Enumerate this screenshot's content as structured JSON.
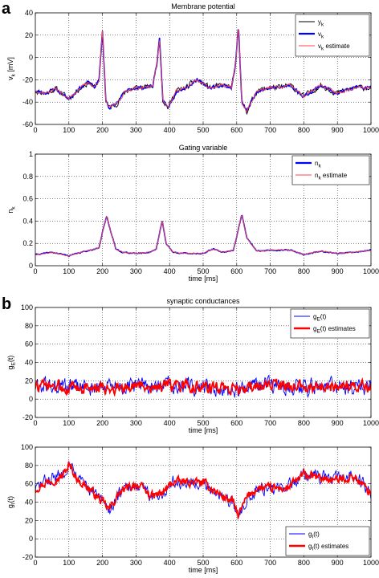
{
  "panel_labels": [
    "a",
    "b"
  ],
  "chart_data": [
    {
      "type": "line",
      "title": "Membrane potential",
      "xlabel": "",
      "ylabel": "v_k [mV]",
      "xlim": [
        0,
        1000
      ],
      "ylim": [
        -60,
        40
      ],
      "xticks": [
        0,
        100,
        200,
        300,
        400,
        500,
        600,
        700,
        800,
        900,
        1000
      ],
      "yticks": [
        -60,
        -40,
        -20,
        0,
        20,
        40
      ],
      "grid": true,
      "legend_position": "top-right",
      "series": [
        {
          "name": "y_k",
          "color": "#000000",
          "noise": 2.2,
          "seed": 11,
          "x": [
            0,
            30,
            60,
            100,
            130,
            160,
            175,
            190,
            200,
            210,
            220,
            240,
            270,
            300,
            330,
            350,
            362,
            370,
            380,
            395,
            420,
            450,
            480,
            520,
            560,
            585,
            597,
            605,
            615,
            630,
            660,
            700,
            730,
            760,
            800,
            850,
            900,
            950,
            1000
          ],
          "values": [
            -30,
            -32,
            -28,
            -37,
            -28,
            -22,
            -27,
            -20,
            24,
            -38,
            -45,
            -42,
            -30,
            -27,
            -27,
            -25,
            -5,
            16,
            -38,
            -45,
            -30,
            -27,
            -20,
            -27,
            -25,
            -27,
            -5,
            30,
            -40,
            -48,
            -30,
            -27,
            -27,
            -25,
            -35,
            -25,
            -32,
            -27,
            -27
          ]
        },
        {
          "name": "v_k",
          "color": "#0000ff",
          "noise": 1.2,
          "seed": 23,
          "x": [
            0,
            30,
            60,
            100,
            130,
            160,
            175,
            190,
            200,
            210,
            220,
            240,
            270,
            300,
            330,
            350,
            362,
            370,
            380,
            395,
            420,
            450,
            480,
            520,
            560,
            585,
            597,
            605,
            615,
            630,
            660,
            700,
            730,
            760,
            800,
            850,
            900,
            950,
            1000
          ],
          "values": [
            -30,
            -32,
            -28,
            -37,
            -28,
            -22,
            -27,
            -20,
            24,
            -38,
            -45,
            -42,
            -30,
            -27,
            -27,
            -25,
            -5,
            16,
            -38,
            -45,
            -30,
            -27,
            -20,
            -27,
            -25,
            -27,
            -5,
            30,
            -40,
            -48,
            -30,
            -27,
            -27,
            -25,
            -35,
            -25,
            -32,
            -27,
            -27
          ]
        },
        {
          "name": "v_k estimate",
          "color": "#ff4444",
          "noise": 1.2,
          "seed": 37,
          "x": [
            0,
            30,
            60,
            100,
            130,
            160,
            175,
            190,
            200,
            210,
            220,
            240,
            270,
            300,
            330,
            350,
            362,
            370,
            380,
            395,
            420,
            450,
            480,
            520,
            560,
            585,
            597,
            605,
            615,
            630,
            660,
            700,
            730,
            760,
            800,
            850,
            900,
            950,
            1000
          ],
          "values": [
            -30,
            -32,
            -28,
            -37,
            -28,
            -22,
            -27,
            -20,
            24,
            -38,
            -45,
            -42,
            -30,
            -27,
            -27,
            -25,
            -5,
            16,
            -38,
            -45,
            -30,
            -27,
            -20,
            -27,
            -25,
            -27,
            -5,
            30,
            -40,
            -48,
            -30,
            -27,
            -27,
            -25,
            -35,
            -25,
            -32,
            -27,
            -27
          ]
        }
      ],
      "legend": [
        {
          "label": "y",
          "sub": "k"
        },
        {
          "label": "v",
          "sub": "k"
        },
        {
          "label": "v",
          "sub": "k",
          "suffix": " estimate"
        }
      ]
    },
    {
      "type": "line",
      "title": "Gating variable",
      "xlabel": "time [ms]",
      "ylabel": "n_k",
      "xlim": [
        0,
        1000
      ],
      "ylim": [
        0,
        1
      ],
      "xticks": [
        0,
        100,
        200,
        300,
        400,
        500,
        600,
        700,
        800,
        900,
        1000
      ],
      "yticks": [
        0,
        0.2,
        0.4,
        0.6,
        0.8,
        1
      ],
      "grid": true,
      "legend_position": "top-right",
      "series": [
        {
          "name": "n_k",
          "color": "#0000ff",
          "noise": 0.004,
          "seed": 41,
          "x": [
            0,
            50,
            100,
            150,
            190,
            200,
            213,
            225,
            240,
            260,
            300,
            340,
            360,
            378,
            390,
            410,
            450,
            500,
            530,
            560,
            590,
            603,
            615,
            630,
            660,
            700,
            760,
            800,
            850,
            900,
            950,
            1000
          ],
          "values": [
            0.1,
            0.12,
            0.09,
            0.13,
            0.16,
            0.3,
            0.45,
            0.3,
            0.15,
            0.12,
            0.11,
            0.12,
            0.15,
            0.4,
            0.2,
            0.12,
            0.11,
            0.11,
            0.15,
            0.12,
            0.14,
            0.3,
            0.46,
            0.25,
            0.13,
            0.14,
            0.14,
            0.1,
            0.13,
            0.11,
            0.12,
            0.14
          ]
        },
        {
          "name": "n_k estimate",
          "color": "#ff4444",
          "noise": 0.004,
          "seed": 53,
          "x": [
            0,
            50,
            100,
            150,
            190,
            200,
            213,
            225,
            240,
            260,
            300,
            340,
            360,
            378,
            390,
            410,
            450,
            500,
            530,
            560,
            590,
            603,
            615,
            630,
            660,
            700,
            760,
            800,
            850,
            900,
            950,
            1000
          ],
          "values": [
            0.1,
            0.12,
            0.09,
            0.13,
            0.16,
            0.3,
            0.45,
            0.3,
            0.15,
            0.12,
            0.11,
            0.12,
            0.15,
            0.4,
            0.2,
            0.12,
            0.11,
            0.11,
            0.15,
            0.12,
            0.14,
            0.3,
            0.46,
            0.25,
            0.13,
            0.14,
            0.14,
            0.1,
            0.13,
            0.11,
            0.12,
            0.14
          ]
        }
      ],
      "legend": [
        {
          "label": "n",
          "sub": "k"
        },
        {
          "label": "n",
          "sub": "k",
          "suffix": " estimate"
        }
      ]
    },
    {
      "type": "line",
      "title": "synaptic conductances",
      "xlabel": "time [ms]",
      "ylabel": "g_E(t)",
      "xlim": [
        0,
        1000
      ],
      "ylim": [
        -20,
        100
      ],
      "xticks": [
        0,
        100,
        200,
        300,
        400,
        500,
        600,
        700,
        800,
        900,
        1000
      ],
      "yticks": [
        -20,
        0,
        20,
        40,
        60,
        80,
        100
      ],
      "grid": true,
      "legend_position": "top-right",
      "series": [
        {
          "name": "g_E(t)",
          "color": "#0000ff",
          "noise": 8,
          "seed": 61,
          "x": [
            0,
            100,
            200,
            300,
            400,
            500,
            600,
            700,
            800,
            900,
            1000
          ],
          "values": [
            14,
            13,
            12,
            14,
            14,
            13,
            10,
            15,
            14,
            13,
            13
          ]
        },
        {
          "name": "g_E(t) estimates",
          "color": "#ff0000",
          "noise": 5.5,
          "seed": 73,
          "x": [
            0,
            100,
            200,
            300,
            400,
            500,
            600,
            700,
            800,
            900,
            1000
          ],
          "values": [
            14,
            13,
            12,
            14,
            14,
            13,
            11,
            15,
            14,
            13,
            13
          ]
        }
      ],
      "legend": [
        {
          "label": "g",
          "sub": "E",
          "suffix": "(t)"
        },
        {
          "label": "g",
          "sub": "E",
          "suffix": "(t) estimates"
        }
      ]
    },
    {
      "type": "line",
      "title": "",
      "xlabel": "time [ms]",
      "ylabel": "g_I(t)",
      "xlim": [
        0,
        1000
      ],
      "ylim": [
        -20,
        100
      ],
      "xticks": [
        0,
        100,
        200,
        300,
        400,
        500,
        600,
        700,
        800,
        900,
        1000
      ],
      "yticks": [
        -20,
        0,
        20,
        40,
        60,
        80,
        100
      ],
      "grid": true,
      "legend_position": "bottom-right",
      "series": [
        {
          "name": "g_I(t)",
          "color": "#0000ff",
          "noise": 6,
          "seed": 83,
          "x": [
            0,
            40,
            80,
            100,
            130,
            160,
            200,
            220,
            250,
            300,
            350,
            380,
            410,
            450,
            500,
            560,
            590,
            605,
            630,
            660,
            700,
            750,
            800,
            850,
            900,
            950,
            1000
          ],
          "values": [
            55,
            65,
            70,
            85,
            65,
            55,
            40,
            30,
            50,
            60,
            45,
            50,
            62,
            62,
            62,
            45,
            40,
            22,
            45,
            55,
            55,
            55,
            72,
            68,
            65,
            70,
            50
          ]
        },
        {
          "name": "g_I(t) estimates",
          "color": "#ff0000",
          "noise": 4,
          "seed": 97,
          "x": [
            0,
            40,
            80,
            100,
            130,
            160,
            200,
            220,
            250,
            300,
            350,
            380,
            410,
            450,
            500,
            560,
            590,
            605,
            630,
            660,
            700,
            750,
            800,
            850,
            900,
            950,
            1000
          ],
          "values": [
            55,
            63,
            68,
            80,
            63,
            55,
            40,
            32,
            50,
            60,
            46,
            50,
            62,
            62,
            61,
            46,
            40,
            25,
            45,
            55,
            55,
            55,
            70,
            66,
            64,
            68,
            50
          ]
        }
      ],
      "legend": [
        {
          "label": "g",
          "sub": "I",
          "suffix": "(t)"
        },
        {
          "label": "g",
          "sub": "I",
          "suffix": "(t) estimates"
        }
      ]
    }
  ]
}
